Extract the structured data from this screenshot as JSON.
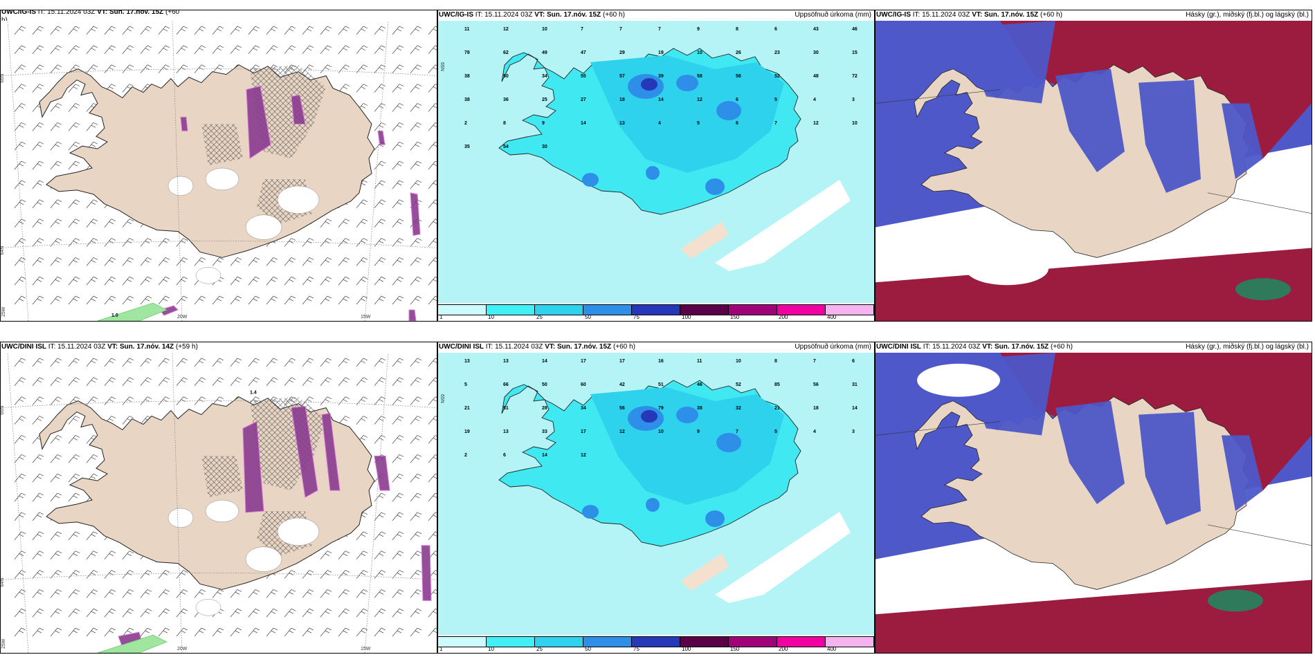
{
  "panels": [
    {
      "model": "UWC/IG-IS",
      "it": "IT: 15.11.2024 03Z",
      "vt": "VT: Sun. 17.nóv. 15Z",
      "lead": "(+60",
      "lead2": "h)",
      "right": "",
      "type": "wind",
      "extra": "1.0"
    },
    {
      "model": "UWC/IG-IS",
      "it": "IT: 15.11.2024 03Z",
      "vt": "VT: Sun. 17.nóv. 15Z",
      "lead": "(+60 h)",
      "right": "Uppsöfnuð úrkoma (mm)",
      "type": "precip"
    },
    {
      "model": "UWC/IG-IS",
      "it": "IT: 15.11.2024 03Z",
      "vt": "VT: Sun. 17.nóv. 15Z",
      "lead": "(+60 h)",
      "right": "Hásky (gr.), miðský (fj.bl.) og lágský (bl.)",
      "type": "cloud"
    },
    {
      "model": "UWC/DINI ISL",
      "it": "IT: 15.11.2024 03Z",
      "vt": "VT: Sun. 17.nóv. 14Z",
      "lead": "(+59 h)",
      "right": "",
      "type": "wind",
      "extra": "1.4"
    },
    {
      "model": "UWC/DINI ISL",
      "it": "IT: 15.11.2024 03Z",
      "vt": "VT: Sun. 17.nóv. 15Z",
      "lead": "(+60 h)",
      "right": "Uppsöfnuð úrkoma (mm)",
      "type": "precip"
    },
    {
      "model": "UWC/DINI ISL",
      "it": "IT: 15.11.2024 03Z",
      "vt": "VT: Sun. 17.nóv. 15Z",
      "lead": "(+60 h)",
      "right": "Hásky (gr.), miðský (fj.bl.) og lágský (bl.)",
      "type": "cloud"
    }
  ],
  "axis_labels": {
    "lat66": "66N",
    "lat64": "64N",
    "lat65": "65N",
    "lon25": "25W",
    "lon20": "20W",
    "lon15": "15W"
  },
  "colorbar": {
    "ticks": [
      "1",
      "10",
      "25",
      "50",
      "75",
      "100",
      "150",
      "200",
      "400"
    ],
    "colors": [
      "#ccfbfd",
      "#40f0f4",
      "#2fd2ec",
      "#2e8fe9",
      "#2438b8",
      "#5a0048",
      "#a00078",
      "#f000a0",
      "#f5b4f0"
    ]
  },
  "precip_numbers_top": [
    "11",
    "12",
    "10",
    "7",
    "7",
    "7",
    "9",
    "8",
    "6",
    "43",
    "46",
    "78",
    "62",
    "49",
    "47",
    "29",
    "19",
    "10",
    "26",
    "23",
    "30",
    "15",
    "38",
    "50",
    "34",
    "55",
    "57",
    "39",
    "58",
    "56",
    "52",
    "48",
    "72",
    "38",
    "36",
    "25",
    "27",
    "18",
    "14",
    "12",
    "6",
    "5",
    "4",
    "3",
    "2",
    "8",
    "9",
    "14",
    "13",
    "4",
    "5",
    "6",
    "7",
    "12",
    "10",
    "35",
    "54",
    "30"
  ],
  "precip_numbers_bottom": [
    "13",
    "13",
    "14",
    "17",
    "17",
    "16",
    "11",
    "10",
    "8",
    "7",
    "6",
    "5",
    "66",
    "50",
    "60",
    "42",
    "51",
    "46",
    "52",
    "85",
    "56",
    "31",
    "21",
    "51",
    "28",
    "34",
    "56",
    "79",
    "38",
    "32",
    "21",
    "18",
    "14",
    "19",
    "13",
    "33",
    "17",
    "12",
    "10",
    "9",
    "7",
    "5",
    "4",
    "3",
    "2",
    "6",
    "14",
    "12"
  ],
  "colors": {
    "land": "#e9d5c3",
    "precip_bg": "#b3f7f8",
    "sea_precip": "#b4f4f6",
    "cloud_high": "#9b1c3e",
    "cloud_mid": "#4e58c8",
    "cloud_low": "#3b4fd0"
  }
}
